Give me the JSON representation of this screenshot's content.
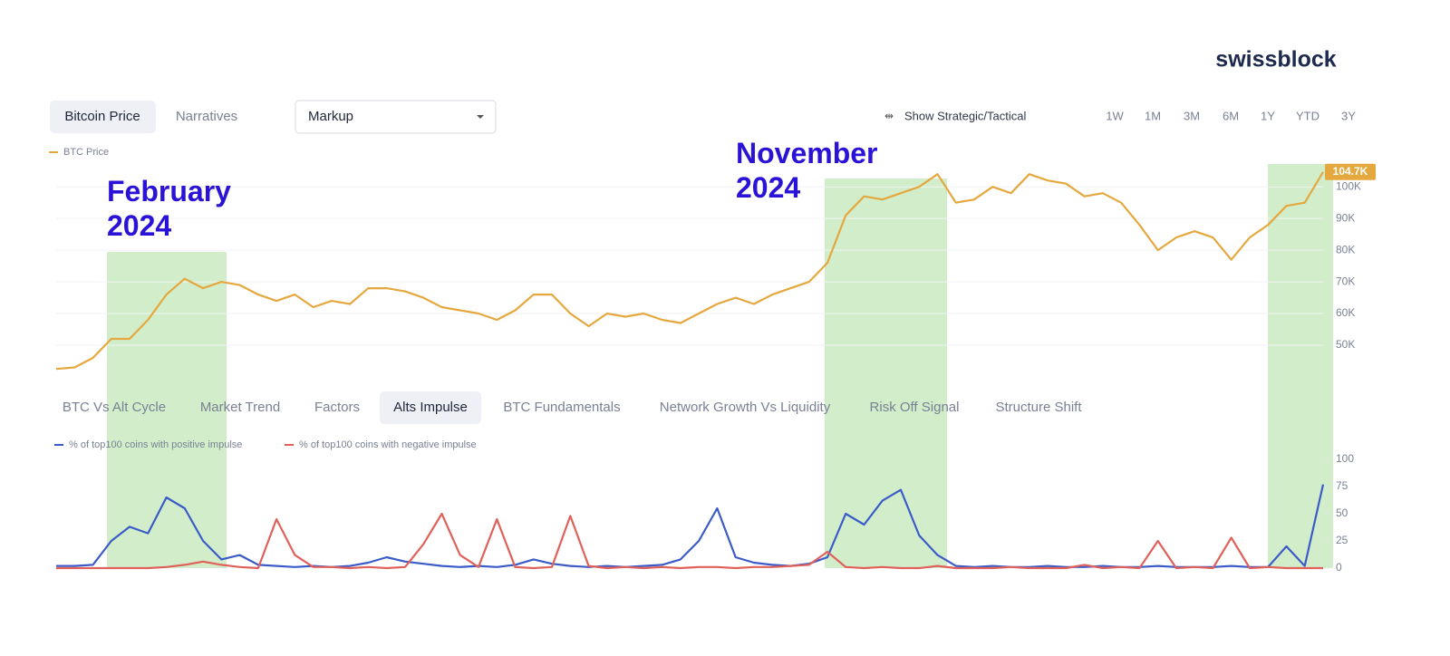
{
  "logo": "swissblock",
  "header": {
    "tabs": [
      "Bitcoin Price",
      "Narratives"
    ],
    "dropdown": "Markup",
    "toggle": "Show Strategic/Tactical",
    "ranges": [
      "1W",
      "1M",
      "3M",
      "6M",
      "1Y",
      "YTD",
      "3Y"
    ]
  },
  "subtabs": [
    "BTC Vs Alt Cycle",
    "Market Trend",
    "Factors",
    "Alts Impulse",
    "BTC Fundamentals",
    "Network Growth Vs Liquidity",
    "Risk Off Signal",
    "Structure Shift"
  ],
  "chart_data": [
    {
      "type": "line",
      "annotations": [
        "February 2024",
        "November 2024"
      ],
      "series": [
        {
          "name": "BTC Price",
          "color": "#e5a83f",
          "values": [
            42500,
            43000,
            46000,
            52000,
            52000,
            58000,
            66000,
            71000,
            68000,
            70000,
            69000,
            66000,
            64000,
            66000,
            62000,
            64000,
            63000,
            68000,
            68000,
            67000,
            65000,
            62000,
            61000,
            60000,
            58000,
            61000,
            66000,
            66000,
            60000,
            56000,
            60000,
            59000,
            60000,
            58000,
            57000,
            60000,
            63000,
            65000,
            63000,
            66000,
            68000,
            70000,
            76000,
            91000,
            97000,
            96000,
            98000,
            100000,
            104000,
            95000,
            96000,
            100000,
            98000,
            104000,
            102000,
            101000,
            97000,
            98000,
            95000,
            88000,
            80000,
            84000,
            86000,
            84000,
            77000,
            84000,
            88000,
            94000,
            95000,
            104700
          ],
          "value_labels": [
            null,
            null,
            null,
            null,
            null,
            null,
            null,
            null,
            null,
            null,
            null,
            null,
            null,
            null,
            null,
            null,
            null,
            null,
            null,
            null,
            null,
            null,
            null,
            null,
            null,
            null,
            null,
            null,
            null,
            null,
            null,
            null,
            null,
            null,
            null,
            null,
            null,
            null,
            null,
            null,
            null,
            null,
            null,
            null,
            null,
            null,
            null,
            null,
            null,
            null,
            null,
            null,
            null,
            null,
            null,
            null,
            null,
            null,
            null,
            null,
            null,
            null,
            null,
            null,
            null,
            null,
            null,
            null,
            null,
            "104.7K"
          ]
        }
      ],
      "ylim": [
        41700,
        107500
      ],
      "yticks": [
        {
          "value": 50000,
          "label": "50K"
        },
        {
          "value": 60000,
          "label": "60K"
        },
        {
          "value": 70000,
          "label": "70K"
        },
        {
          "value": 80000,
          "label": "80K"
        },
        {
          "value": 90000,
          "label": "90K"
        },
        {
          "value": 100000,
          "label": "100K"
        }
      ],
      "grid": true
    },
    {
      "type": "line",
      "series": [
        {
          "name": "% of top100 coins with positive impulse",
          "color": "#3b5bc8",
          "values": [
            2,
            2,
            3,
            25,
            38,
            32,
            65,
            55,
            25,
            8,
            12,
            3,
            2,
            1,
            2,
            1,
            2,
            5,
            10,
            6,
            4,
            2,
            1,
            2,
            1,
            3,
            8,
            4,
            2,
            1,
            2,
            1,
            2,
            3,
            8,
            25,
            55,
            10,
            5,
            3,
            2,
            4,
            10,
            50,
            40,
            62,
            72,
            30,
            12,
            2,
            1,
            2,
            1,
            1,
            2,
            1,
            1,
            2,
            1,
            1,
            2,
            1,
            1,
            1,
            2,
            1,
            1,
            20,
            2,
            77
          ]
        },
        {
          "name": "% of top100 coins with negative impulse",
          "color": "#e0605a",
          "values": [
            0,
            0,
            0,
            0,
            0,
            0,
            1,
            3,
            6,
            3,
            1,
            0,
            45,
            12,
            1,
            1,
            0,
            1,
            0,
            1,
            22,
            50,
            12,
            1,
            45,
            1,
            0,
            1,
            48,
            2,
            0,
            1,
            0,
            1,
            0,
            1,
            1,
            0,
            1,
            1,
            2,
            3,
            15,
            1,
            0,
            1,
            0,
            0,
            2,
            0,
            0,
            0,
            1,
            0,
            0,
            0,
            3,
            0,
            1,
            0,
            25,
            0,
            1,
            0,
            28,
            0,
            1,
            0,
            0,
            0
          ]
        }
      ],
      "ylim": [
        0,
        100
      ],
      "yticks": [
        0,
        25,
        50,
        75,
        100
      ],
      "grid": false
    }
  ]
}
